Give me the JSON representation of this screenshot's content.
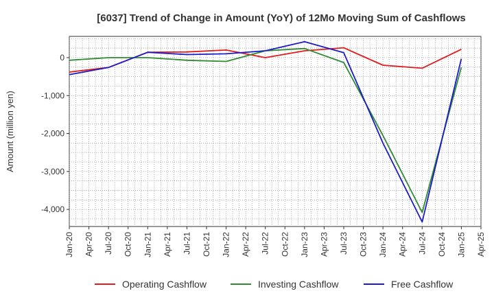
{
  "chart_data": {
    "type": "line",
    "title": "[6037]  Trend of Change in Amount (YoY) of 12Mo Moving Sum of Cashflows",
    "xlabel": "",
    "ylabel": "Amount (million yen)",
    "ylim": [
      -4450,
      560
    ],
    "yticks": [
      0,
      -1000,
      -2000,
      -3000,
      -4000
    ],
    "ytick_labels": [
      "0",
      "-1,000",
      "-2,000",
      "-3,000",
      "-4,000"
    ],
    "categories": [
      "Jan-20",
      "Apr-20",
      "Jul-20",
      "Oct-20",
      "Jan-21",
      "Apr-21",
      "Jul-21",
      "Oct-21",
      "Jan-22",
      "Apr-22",
      "Jul-22",
      "Oct-22",
      "Jan-23",
      "Apr-23",
      "Jul-23",
      "Oct-23",
      "Jan-24",
      "Apr-24",
      "Jul-24",
      "Oct-24",
      "Jan-25",
      "Apr-25"
    ],
    "series": [
      {
        "name": "Operating Cashflow",
        "color": "#e31a1c",
        "x": [
          "Jan-20",
          "Jul-20",
          "Jan-21",
          "Jul-21",
          "Jan-22",
          "Jul-22",
          "Jan-23",
          "Jul-23",
          "Jan-24",
          "Jul-24",
          "Jan-25"
        ],
        "values": [
          -380,
          -260,
          140,
          150,
          200,
          0,
          180,
          260,
          -200,
          -280,
          220
        ]
      },
      {
        "name": "Investing Cashflow",
        "color": "#2e8b2e",
        "x": [
          "Jan-20",
          "Jul-20",
          "Jan-21",
          "Jul-21",
          "Jan-22",
          "Jul-22",
          "Jan-23",
          "Jul-23",
          "Jan-24",
          "Jul-24",
          "Jan-25"
        ],
        "values": [
          -70,
          0,
          0,
          -70,
          -100,
          180,
          240,
          -130,
          -2050,
          -4080,
          -250
        ]
      },
      {
        "name": "Free Cashflow",
        "color": "#1a1acc",
        "x": [
          "Jan-20",
          "Jul-20",
          "Jan-21",
          "Jul-21",
          "Jan-22",
          "Jul-22",
          "Jan-23",
          "Jul-23",
          "Jan-24",
          "Jul-24",
          "Jan-25"
        ],
        "values": [
          -450,
          -260,
          140,
          80,
          100,
          180,
          420,
          130,
          -2250,
          -4330,
          -30
        ]
      }
    ],
    "legend": "bottom",
    "grid": true
  }
}
